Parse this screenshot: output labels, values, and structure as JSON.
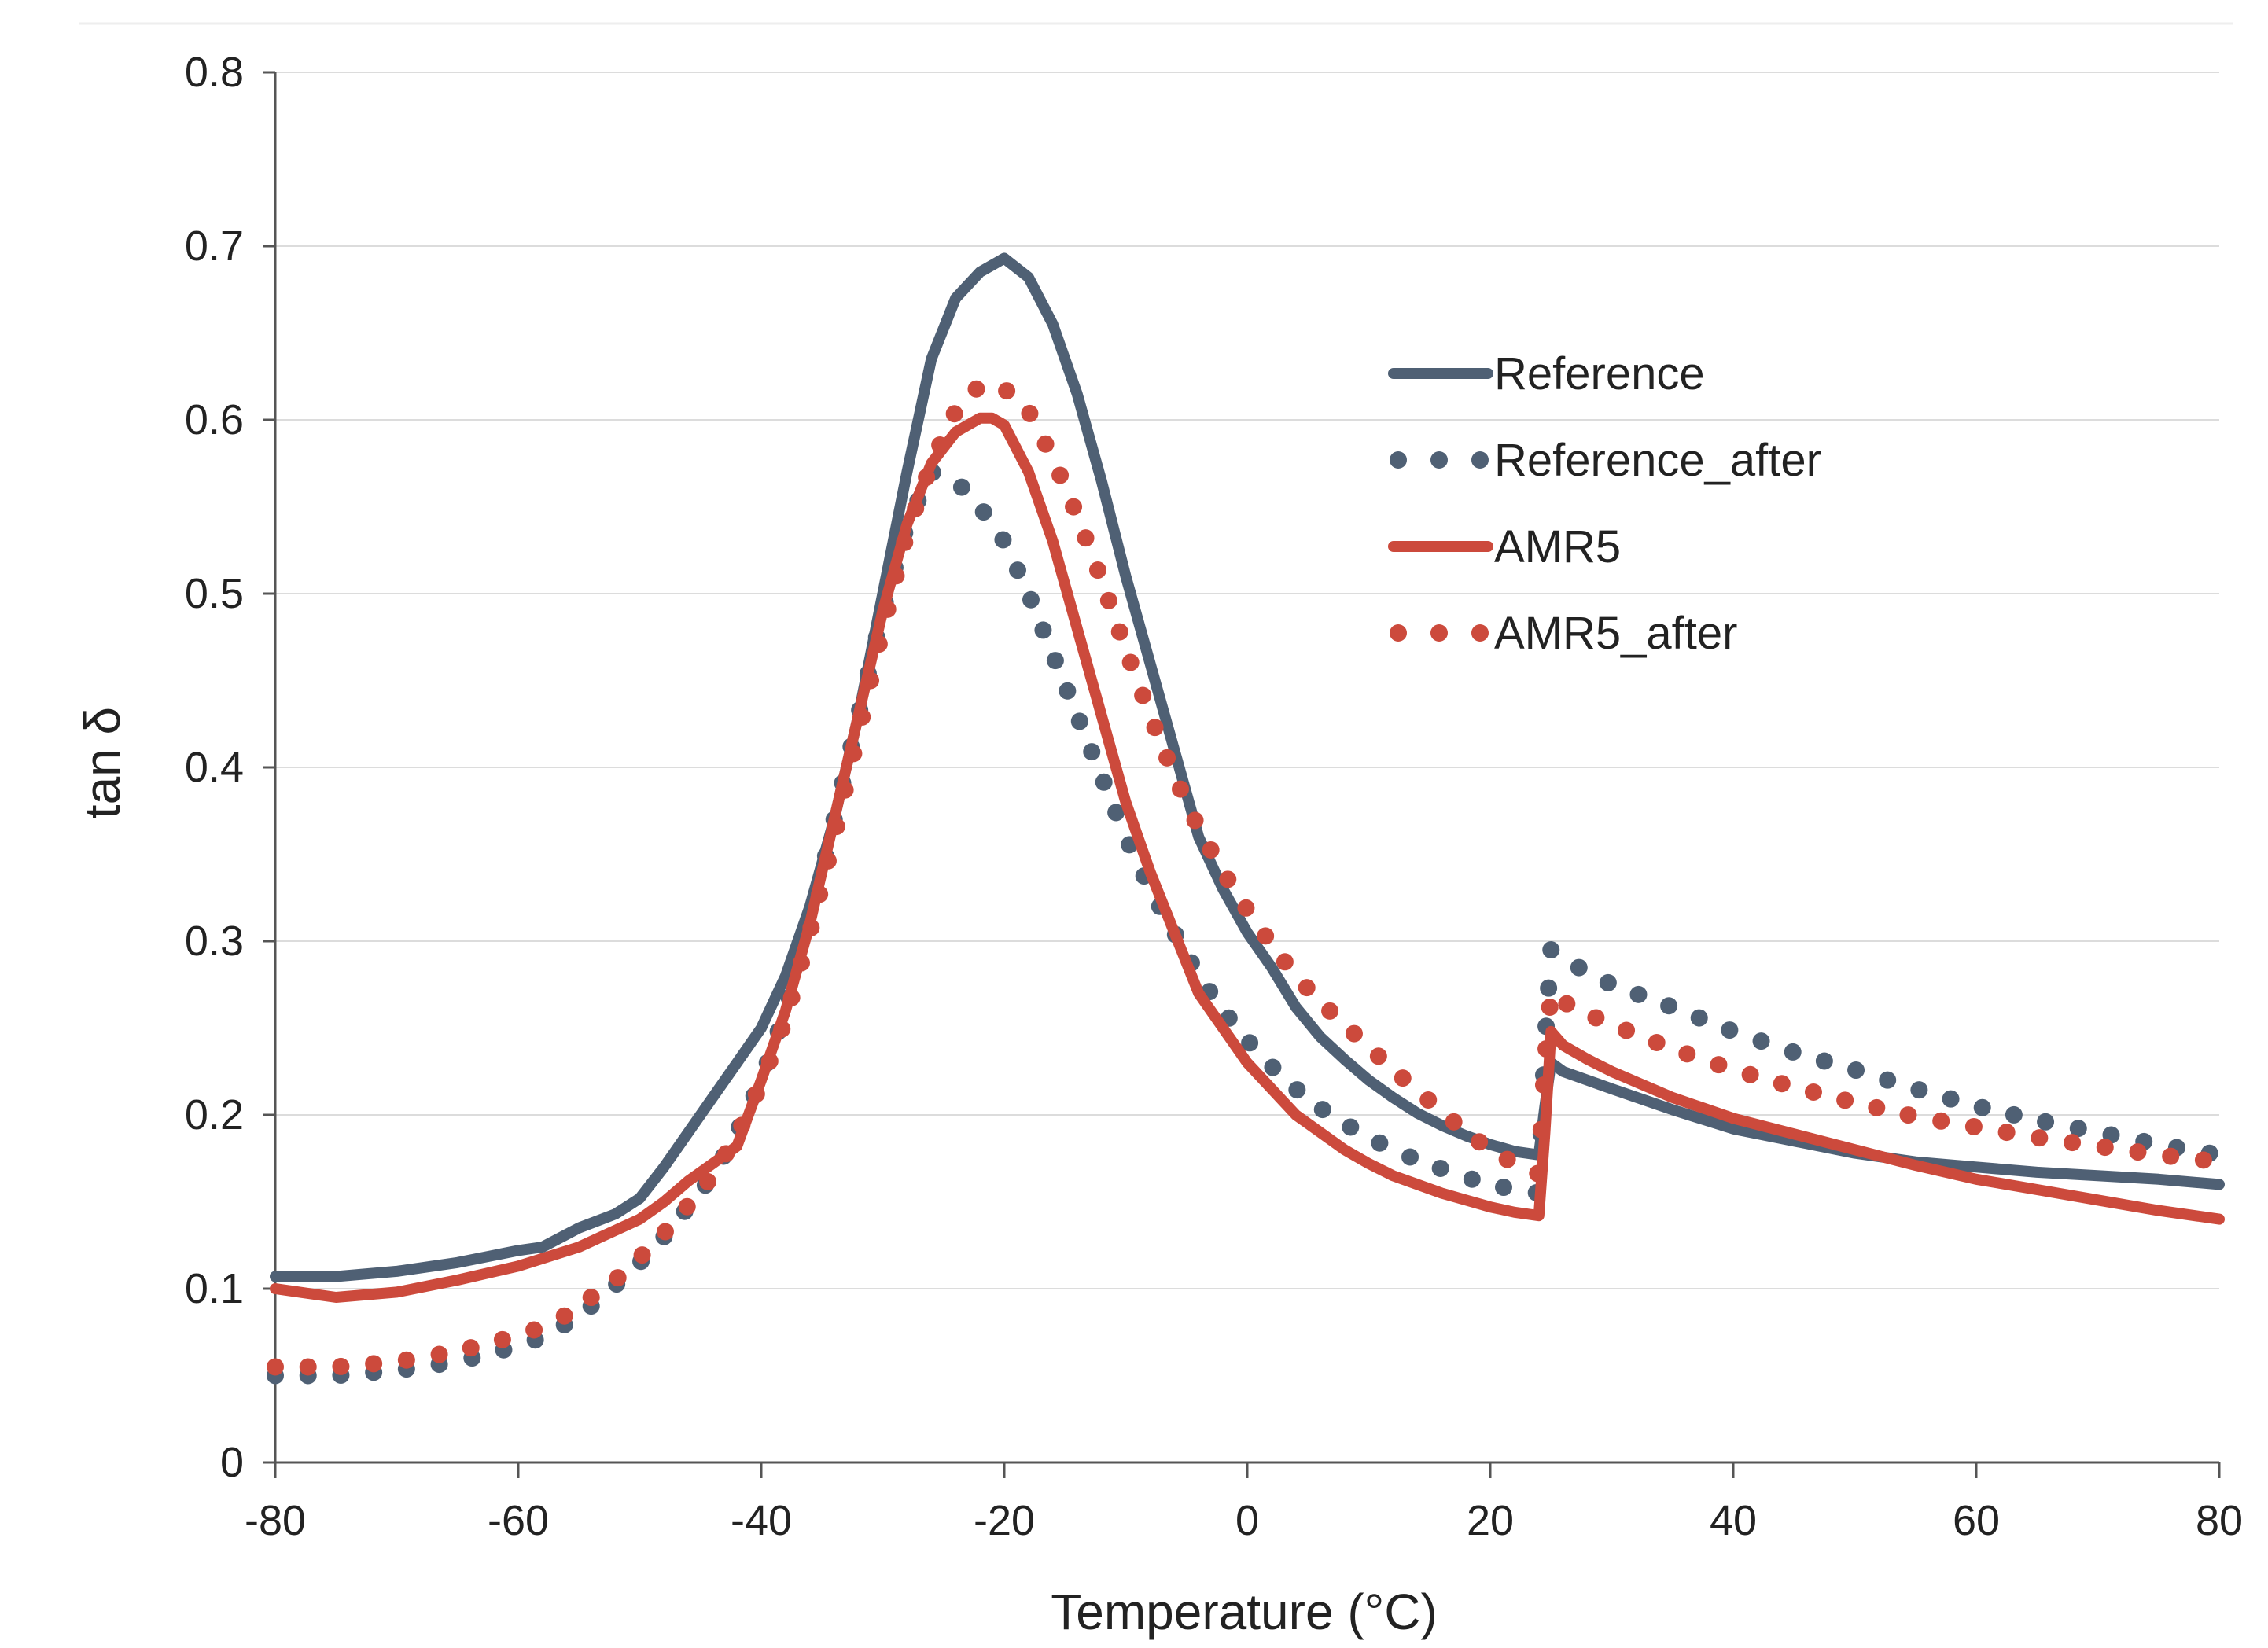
{
  "chart_data": {
    "type": "line",
    "title": "",
    "xlabel": "Temperature (°C)",
    "ylabel": "tan δ",
    "xlim": [
      -80,
      80
    ],
    "ylim": [
      0,
      0.8
    ],
    "xticks": [
      -80,
      -60,
      -40,
      -20,
      0,
      20,
      40,
      60,
      80
    ],
    "yticks": [
      0,
      0.1,
      0.2,
      0.3,
      0.4,
      0.5,
      0.6,
      0.7,
      0.8
    ],
    "xtick_labels": [
      "-80",
      "-60",
      "-40",
      "-20",
      "0",
      "20",
      "40",
      "60",
      "80"
    ],
    "ytick_labels": [
      "0",
      "0.1",
      "0.2",
      "0.3",
      "0.4",
      "0.5",
      "0.6",
      "0.7",
      "0.8"
    ],
    "grid": "horizontal",
    "legend_position": "upper-right",
    "series": [
      {
        "name": "Reference",
        "style": "solid",
        "color": "#4f6074",
        "x": [
          -80,
          -75,
          -70,
          -65,
          -60,
          -58,
          -55,
          -52,
          -50,
          -48,
          -46,
          -44,
          -42,
          -40,
          -38,
          -36,
          -34,
          -32,
          -30,
          -28,
          -26,
          -24,
          -22,
          -20,
          -18,
          -16,
          -14,
          -12,
          -10,
          -8,
          -6,
          -4,
          -2,
          0,
          2,
          4,
          6,
          8,
          10,
          12,
          14,
          16,
          18,
          20,
          22,
          24,
          24.5,
          25,
          26,
          28,
          30,
          35,
          40,
          45,
          50,
          55,
          60,
          65,
          70,
          75,
          80
        ],
        "y": [
          0.107,
          0.107,
          0.11,
          0.115,
          0.122,
          0.124,
          0.135,
          0.143,
          0.152,
          0.17,
          0.19,
          0.21,
          0.23,
          0.25,
          0.28,
          0.32,
          0.37,
          0.43,
          0.5,
          0.57,
          0.635,
          0.67,
          0.685,
          0.693,
          0.682,
          0.655,
          0.615,
          0.565,
          0.51,
          0.46,
          0.41,
          0.36,
          0.33,
          0.305,
          0.285,
          0.262,
          0.245,
          0.232,
          0.22,
          0.21,
          0.201,
          0.194,
          0.188,
          0.183,
          0.179,
          0.177,
          0.205,
          0.23,
          0.225,
          0.22,
          0.215,
          0.203,
          0.192,
          0.185,
          0.178,
          0.173,
          0.17,
          0.167,
          0.165,
          0.163,
          0.16
        ]
      },
      {
        "name": "Reference_after",
        "style": "dotted",
        "color": "#4f6074",
        "x": [
          -80,
          -75,
          -70,
          -65,
          -60,
          -58,
          -56,
          -54,
          -52,
          -50,
          -48,
          -46,
          -44,
          -42,
          -40,
          -38,
          -36,
          -34,
          -32,
          -30,
          -28,
          -26,
          -24,
          -22,
          -20,
          -18,
          -16,
          -14,
          -12,
          -10,
          -8,
          -6,
          -4,
          -2,
          0,
          2,
          4,
          6,
          8,
          10,
          12,
          14,
          16,
          18,
          20,
          22,
          24,
          24.5,
          25,
          26,
          28,
          30,
          35,
          40,
          45,
          50,
          55,
          60,
          65,
          70,
          75,
          80
        ],
        "y": [
          0.05,
          0.05,
          0.053,
          0.058,
          0.067,
          0.072,
          0.08,
          0.09,
          0.102,
          0.115,
          0.13,
          0.147,
          0.165,
          0.19,
          0.22,
          0.26,
          0.31,
          0.37,
          0.43,
          0.49,
          0.54,
          0.57,
          0.565,
          0.55,
          0.53,
          0.5,
          0.465,
          0.43,
          0.395,
          0.36,
          0.33,
          0.305,
          0.28,
          0.26,
          0.243,
          0.228,
          0.215,
          0.204,
          0.195,
          0.187,
          0.18,
          0.174,
          0.169,
          0.164,
          0.16,
          0.157,
          0.155,
          0.24,
          0.295,
          0.29,
          0.282,
          0.275,
          0.262,
          0.248,
          0.236,
          0.226,
          0.215,
          0.205,
          0.197,
          0.19,
          0.183,
          0.177
        ]
      },
      {
        "name": "AMR5",
        "style": "solid",
        "color": "#cc4a3c",
        "x": [
          -80,
          -75,
          -70,
          -65,
          -60,
          -55,
          -50,
          -48,
          -46,
          -44,
          -42,
          -40,
          -38,
          -36,
          -34,
          -32,
          -30,
          -28,
          -26,
          -24,
          -22,
          -21,
          -20,
          -18,
          -16,
          -14,
          -12,
          -10,
          -8,
          -6,
          -4,
          -2,
          0,
          2,
          4,
          6,
          8,
          10,
          12,
          14,
          16,
          18,
          20,
          22,
          24,
          24.5,
          25,
          26,
          28,
          30,
          35,
          40,
          45,
          50,
          55,
          60,
          65,
          70,
          75,
          80
        ],
        "y": [
          0.1,
          0.095,
          0.098,
          0.105,
          0.113,
          0.124,
          0.14,
          0.15,
          0.162,
          0.172,
          0.182,
          0.22,
          0.26,
          0.31,
          0.37,
          0.43,
          0.49,
          0.54,
          0.575,
          0.593,
          0.601,
          0.601,
          0.597,
          0.57,
          0.53,
          0.48,
          0.43,
          0.38,
          0.34,
          0.305,
          0.27,
          0.25,
          0.23,
          0.215,
          0.2,
          0.19,
          0.18,
          0.172,
          0.165,
          0.16,
          0.155,
          0.151,
          0.147,
          0.144,
          0.142,
          0.19,
          0.248,
          0.24,
          0.232,
          0.225,
          0.21,
          0.198,
          0.189,
          0.18,
          0.171,
          0.163,
          0.157,
          0.151,
          0.145,
          0.14
        ]
      },
      {
        "name": "AMR5_after",
        "style": "dotted",
        "color": "#cc4a3c",
        "x": [
          -80,
          -75,
          -70,
          -65,
          -60,
          -58,
          -56,
          -54,
          -52,
          -50,
          -48,
          -46,
          -44,
          -42,
          -40,
          -38,
          -36,
          -34,
          -32,
          -30,
          -28,
          -26,
          -24,
          -22,
          -20,
          -18,
          -16,
          -14,
          -12,
          -10,
          -8,
          -6,
          -4,
          -2,
          0,
          2,
          4,
          6,
          8,
          10,
          12,
          14,
          16,
          18,
          20,
          22,
          24,
          24.5,
          25,
          26,
          28,
          30,
          35,
          40,
          45,
          50,
          55,
          60,
          65,
          70,
          75,
          80
        ],
        "y": [
          0.055,
          0.055,
          0.058,
          0.064,
          0.073,
          0.078,
          0.085,
          0.095,
          0.105,
          0.118,
          0.132,
          0.148,
          0.165,
          0.188,
          0.218,
          0.255,
          0.305,
          0.36,
          0.42,
          0.48,
          0.535,
          0.575,
          0.605,
          0.62,
          0.618,
          0.605,
          0.578,
          0.545,
          0.508,
          0.468,
          0.43,
          0.395,
          0.365,
          0.34,
          0.318,
          0.298,
          0.28,
          0.265,
          0.252,
          0.239,
          0.226,
          0.214,
          0.202,
          0.19,
          0.18,
          0.172,
          0.166,
          0.23,
          0.27,
          0.265,
          0.258,
          0.252,
          0.238,
          0.226,
          0.216,
          0.207,
          0.199,
          0.193,
          0.187,
          0.182,
          0.177,
          0.173
        ]
      }
    ]
  }
}
